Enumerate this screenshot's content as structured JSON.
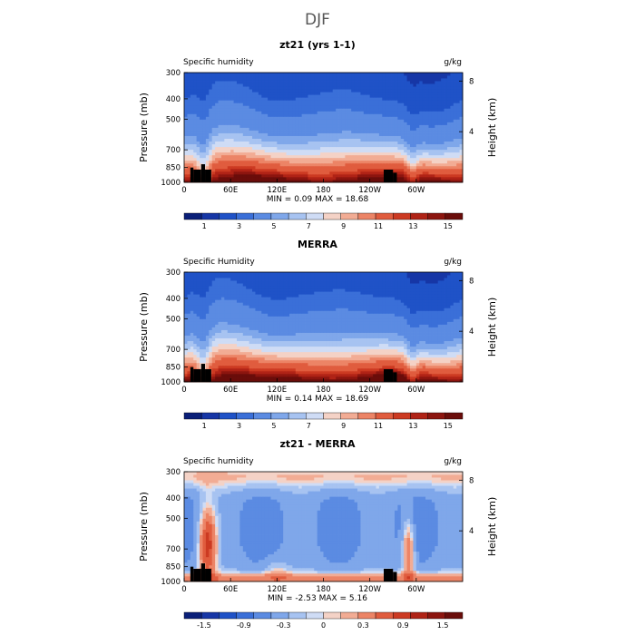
{
  "figure_title": "DJF",
  "chart_data": [
    {
      "type": "heatmap",
      "title": "zt21 (yrs 1-1)",
      "variable": "Specific humidity",
      "units": "g/kg",
      "ylabel": "Pressure (mb)",
      "ylabel_right": "Height (km)",
      "x_ticks": [
        "0",
        "60E",
        "120E",
        "180",
        "120W",
        "60W"
      ],
      "y_ticks": [
        "300",
        "400",
        "500",
        "700",
        "850",
        "1000"
      ],
      "right_ticks": [
        "8",
        "4"
      ],
      "stats": "MIN =    0.09   MAX =   18.68",
      "min": 0.09,
      "max": 18.68,
      "colorbar_labels": [
        "1",
        "3",
        "5",
        "7",
        "9",
        "11",
        "13",
        "15"
      ],
      "levels": [
        0,
        1,
        2,
        3,
        4,
        5,
        6,
        7,
        8,
        9,
        10,
        11,
        12,
        13,
        14,
        15,
        16
      ],
      "colormap": "blue-white-red",
      "x_range": [
        0,
        360
      ],
      "pressure_range": [
        1000,
        300
      ],
      "terrain_mask_color": "#000000"
    },
    {
      "type": "heatmap",
      "title": "MERRA",
      "variable": "Specific Humidity",
      "units": "g/kg",
      "ylabel": "Pressure (mb)",
      "ylabel_right": "Height (km)",
      "x_ticks": [
        "0",
        "60E",
        "120E",
        "180",
        "120W",
        "60W"
      ],
      "y_ticks": [
        "300",
        "400",
        "500",
        "700",
        "850",
        "1000"
      ],
      "right_ticks": [
        "8",
        "4"
      ],
      "stats": "MIN =    0.14   MAX =   18.69",
      "min": 0.14,
      "max": 18.69,
      "colorbar_labels": [
        "1",
        "3",
        "5",
        "7",
        "9",
        "11",
        "13",
        "15"
      ],
      "levels": [
        0,
        1,
        2,
        3,
        4,
        5,
        6,
        7,
        8,
        9,
        10,
        11,
        12,
        13,
        14,
        15,
        16
      ],
      "colormap": "blue-white-red",
      "x_range": [
        0,
        360
      ],
      "pressure_range": [
        1000,
        300
      ],
      "terrain_mask_color": "#000000"
    },
    {
      "type": "heatmap",
      "title": "zt21 - MERRA",
      "variable": "Specific humidity",
      "units": "g/kg",
      "ylabel": "Pressure (mb)",
      "ylabel_right": "Height (km)",
      "x_ticks": [
        "0",
        "60E",
        "120E",
        "180",
        "120W",
        "60W"
      ],
      "y_ticks": [
        "300",
        "400",
        "500",
        "700",
        "850",
        "1000"
      ],
      "right_ticks": [
        "8",
        "4"
      ],
      "stats": "MIN =   -2.53   MAX =    5.16",
      "min": -2.53,
      "max": 5.16,
      "colorbar_labels": [
        "-1.5",
        "-0.9",
        "-0.3",
        "0",
        "0.3",
        "0.9",
        "1.5"
      ],
      "levels": [
        -1.8,
        -1.5,
        -1.2,
        -0.9,
        -0.6,
        -0.3,
        -0.1,
        0,
        0.1,
        0.3,
        0.6,
        0.9,
        1.2,
        1.5,
        1.8
      ],
      "colormap": "blue-white-red",
      "x_range": [
        0,
        360
      ],
      "pressure_range": [
        1000,
        300
      ],
      "terrain_mask_color": "#000000"
    }
  ],
  "colors": {
    "palette": [
      "#0a1f78",
      "#1636a6",
      "#1f52c7",
      "#3a6fd8",
      "#5b8be2",
      "#7fa7ea",
      "#a7c3f1",
      "#cfdcf5",
      "#f4d2c6",
      "#f2ac94",
      "#ec8466",
      "#e05c3e",
      "#cc3a22",
      "#b02316",
      "#8c150f",
      "#6a0d0a"
    ]
  }
}
